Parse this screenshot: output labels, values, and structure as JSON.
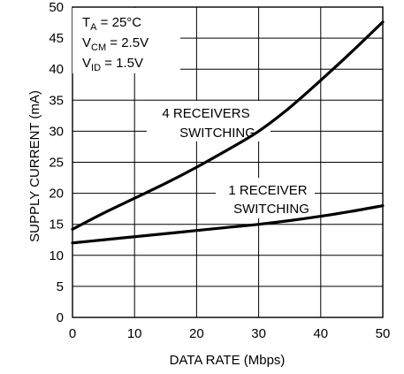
{
  "chart_data": {
    "type": "line",
    "xlabel": "DATA RATE (Mbps)",
    "ylabel": "SUPPLY CURRENT (mA)",
    "xlim": [
      0,
      50
    ],
    "ylim": [
      0,
      50
    ],
    "x_ticks": [
      0,
      10,
      20,
      30,
      40,
      50
    ],
    "y_ticks": [
      0,
      5,
      10,
      15,
      20,
      25,
      30,
      35,
      40,
      45,
      50
    ],
    "x_tick_labels": [
      "0",
      "10",
      "20",
      "30",
      "40",
      "50"
    ],
    "y_tick_labels": [
      "0",
      "5",
      "10",
      "15",
      "20",
      "25",
      "30",
      "35",
      "40",
      "45",
      "50"
    ],
    "grid": true,
    "conditions": [
      {
        "main": "T",
        "sub": "A",
        "rest": " = 25°C"
      },
      {
        "main": "V",
        "sub": "CM",
        "rest": " = 2.5V"
      },
      {
        "main": "V",
        "sub": "ID",
        "rest": " = 1.5V"
      }
    ],
    "series": [
      {
        "name": "4 RECEIVERS SWITCHING",
        "label_lines": [
          "4 RECEIVERS",
          "SWITCHING"
        ],
        "x": [
          0,
          5,
          10,
          15,
          20,
          25,
          30,
          35,
          40,
          45,
          50
        ],
        "y": [
          14.2,
          16.8,
          19.2,
          21.6,
          24.2,
          27.0,
          30.0,
          33.8,
          38.2,
          42.8,
          47.6
        ]
      },
      {
        "name": "1 RECEIVER SWITCHING",
        "label_lines": [
          "1 RECEIVER",
          "SWITCHING"
        ],
        "x": [
          0,
          5,
          10,
          15,
          20,
          25,
          30,
          35,
          40,
          45,
          50
        ],
        "y": [
          12.0,
          12.5,
          13.0,
          13.5,
          14.0,
          14.5,
          15.0,
          15.6,
          16.3,
          17.1,
          18.0
        ]
      }
    ]
  }
}
